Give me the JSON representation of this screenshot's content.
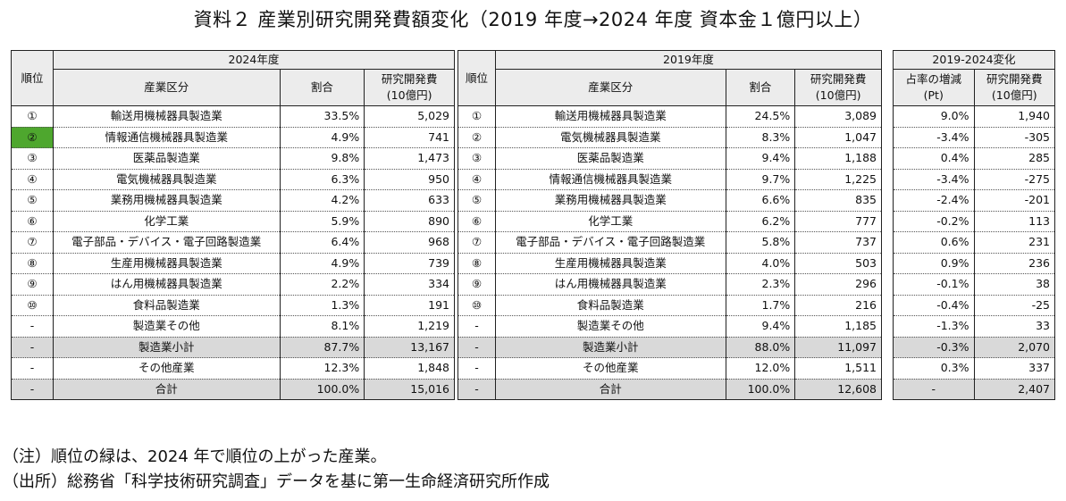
{
  "title": "資料２ 産業別研究開発費額変化（2019 年度→2024 年度 資本金１億円以上）",
  "headers": {
    "rank": "順位",
    "industry": "産業区分",
    "share": "割合",
    "rd_line1": "研究開発費",
    "rd_line2": "(10億円)",
    "year_2024": "2024年度",
    "year_2019": "2019年度",
    "change": "2019-2024変化",
    "share_change_line1": "占率の増減",
    "share_change_line2": "(Pt)"
  },
  "colors": {
    "rank_up": "#4ea72e",
    "subtotal_bg": "#d9d9d9",
    "header_bg": "#ececec"
  },
  "rows_2024": [
    {
      "rank": "①",
      "industry": "輸送用機械器具製造業",
      "share": "33.5%",
      "rd": "5,029"
    },
    {
      "rank": "②",
      "industry": "情報通信機械器具製造業",
      "share": "4.9%",
      "rd": "741",
      "rank_up": true
    },
    {
      "rank": "③",
      "industry": "医薬品製造業",
      "share": "9.8%",
      "rd": "1,473"
    },
    {
      "rank": "④",
      "industry": "電気機械器具製造業",
      "share": "6.3%",
      "rd": "950"
    },
    {
      "rank": "⑤",
      "industry": "業務用機械器具製造業",
      "share": "4.2%",
      "rd": "633"
    },
    {
      "rank": "⑥",
      "industry": "化学工業",
      "share": "5.9%",
      "rd": "890"
    },
    {
      "rank": "⑦",
      "industry": "電子部品・デバイス・電子回路製造業",
      "share": "6.4%",
      "rd": "968"
    },
    {
      "rank": "⑧",
      "industry": "生産用機械器具製造業",
      "share": "4.9%",
      "rd": "739"
    },
    {
      "rank": "⑨",
      "industry": "はん用機械器具製造業",
      "share": "2.2%",
      "rd": "334"
    },
    {
      "rank": "⑩",
      "industry": "食料品製造業",
      "share": "1.3%",
      "rd": "191"
    },
    {
      "rank": "-",
      "industry": "製造業その他",
      "share": "8.1%",
      "rd": "1,219"
    },
    {
      "rank": "-",
      "industry": "製造業小計",
      "share": "87.7%",
      "rd": "13,167",
      "grey": true
    },
    {
      "rank": "-",
      "industry": "その他産業",
      "share": "12.3%",
      "rd": "1,848"
    },
    {
      "rank": "-",
      "industry": "合計",
      "share": "100.0%",
      "rd": "15,016",
      "grey": true
    }
  ],
  "rows_2019": [
    {
      "rank": "①",
      "industry": "輸送用機械器具製造業",
      "share": "24.5%",
      "rd": "3,089"
    },
    {
      "rank": "②",
      "industry": "電気機械器具製造業",
      "share": "8.3%",
      "rd": "1,047"
    },
    {
      "rank": "③",
      "industry": "医薬品製造業",
      "share": "9.4%",
      "rd": "1,188"
    },
    {
      "rank": "④",
      "industry": "情報通信機械器具製造業",
      "share": "9.7%",
      "rd": "1,225"
    },
    {
      "rank": "⑤",
      "industry": "業務用機械器具製造業",
      "share": "6.6%",
      "rd": "835"
    },
    {
      "rank": "⑥",
      "industry": "化学工業",
      "share": "6.2%",
      "rd": "777"
    },
    {
      "rank": "⑦",
      "industry": "電子部品・デバイス・電子回路製造業",
      "share": "5.8%",
      "rd": "737"
    },
    {
      "rank": "⑧",
      "industry": "生産用機械器具製造業",
      "share": "4.0%",
      "rd": "503"
    },
    {
      "rank": "⑨",
      "industry": "はん用機械器具製造業",
      "share": "2.3%",
      "rd": "296"
    },
    {
      "rank": "⑩",
      "industry": "食料品製造業",
      "share": "1.7%",
      "rd": "216"
    },
    {
      "rank": "-",
      "industry": "製造業その他",
      "share": "9.4%",
      "rd": "1,185"
    },
    {
      "rank": "-",
      "industry": "製造業小計",
      "share": "88.0%",
      "rd": "11,097",
      "grey": true
    },
    {
      "rank": "-",
      "industry": "その他産業",
      "share": "12.0%",
      "rd": "1,511"
    },
    {
      "rank": "-",
      "industry": "合計",
      "share": "100.0%",
      "rd": "12,608",
      "grey": true
    }
  ],
  "rows_change": [
    {
      "share_change": "9.0%",
      "rd": "1,940"
    },
    {
      "share_change": "-3.4%",
      "rd": "-305"
    },
    {
      "share_change": "0.4%",
      "rd": "285"
    },
    {
      "share_change": "-3.4%",
      "rd": "-275"
    },
    {
      "share_change": "-2.4%",
      "rd": "-201"
    },
    {
      "share_change": "-0.2%",
      "rd": "113"
    },
    {
      "share_change": "0.6%",
      "rd": "231"
    },
    {
      "share_change": "0.9%",
      "rd": "236"
    },
    {
      "share_change": "-0.1%",
      "rd": "38"
    },
    {
      "share_change": "-0.4%",
      "rd": "-25"
    },
    {
      "share_change": "-1.3%",
      "rd": "33"
    },
    {
      "share_change": "-0.3%",
      "rd": "2,070",
      "grey": true
    },
    {
      "share_change": "0.3%",
      "rd": "337"
    },
    {
      "share_change": "-",
      "rd": "2,407",
      "grey": true,
      "center_share": true
    }
  ],
  "notes": {
    "note1": "（注）順位の緑は、2024 年で順位の上がった産業。",
    "note2": "（出所）総務省「科学技術研究調査」データを基に第一生命経済研究所作成"
  }
}
